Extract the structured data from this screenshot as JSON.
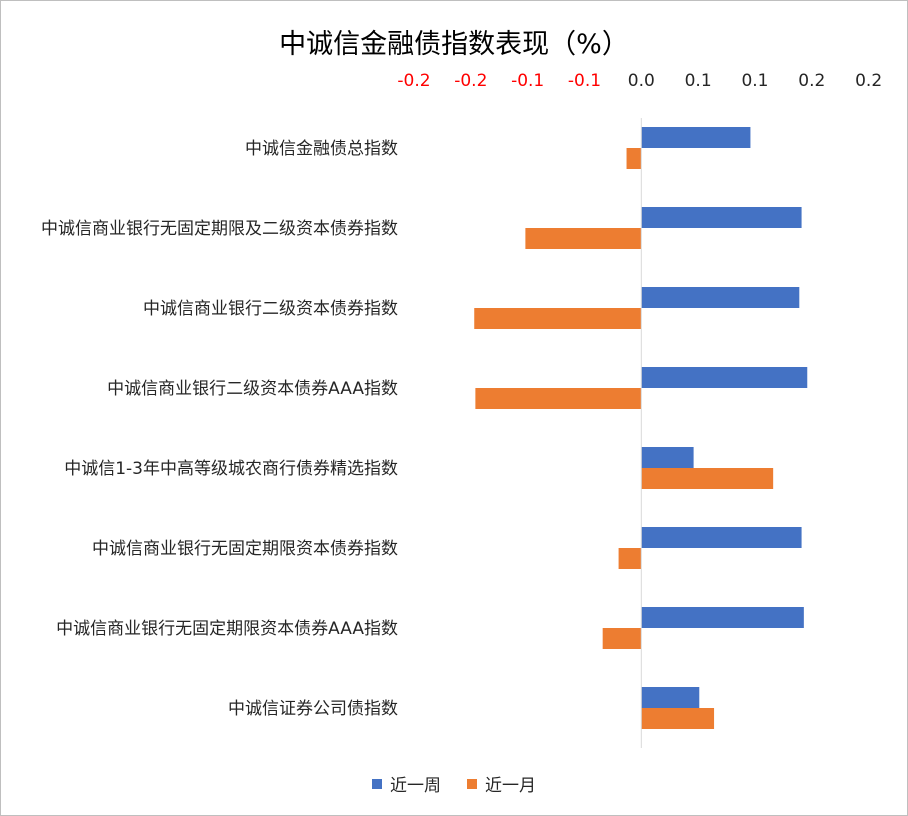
{
  "chart_data": {
    "type": "bar",
    "orientation": "horizontal",
    "title": "中诚信金融债指数表现（%）",
    "categories": [
      "中诚信金融债总指数",
      "中诚信商业银行无固定期限及二级资本债券指数",
      "中诚信商业银行二级资本债券指数",
      "中诚信商业银行二级资本债券AAA指数",
      "中诚信1-3年中高等级城农商行债券精选指数",
      "中诚信商业银行无固定期限资本债券指数",
      "中诚信商业银行无固定期限资本债券AAA指数",
      "中诚信证券公司债指数"
    ],
    "series": [
      {
        "name": "近一周",
        "color": "#4472C4",
        "values": [
          0.096,
          0.141,
          0.139,
          0.146,
          0.046,
          0.141,
          0.143,
          0.051
        ]
      },
      {
        "name": "近一月",
        "color": "#ED7D31",
        "values": [
          -0.013,
          -0.102,
          -0.147,
          -0.146,
          0.116,
          -0.02,
          -0.034,
          0.064
        ]
      }
    ],
    "xlim": [
      -0.2,
      0.21
    ],
    "x_ticks": [
      -0.2,
      -0.15,
      -0.1,
      -0.05,
      0,
      0.05,
      0.1,
      0.15,
      0.2
    ],
    "x_tick_labels": [
      "-0.2",
      "-0.2",
      "-0.1",
      "-0.1",
      "0.0",
      "0.1",
      "0.1",
      "0.2",
      "0.2"
    ],
    "negative_tick_color": "#FF0000",
    "axis_position": "top",
    "grid": false,
    "legend_position": "bottom"
  }
}
